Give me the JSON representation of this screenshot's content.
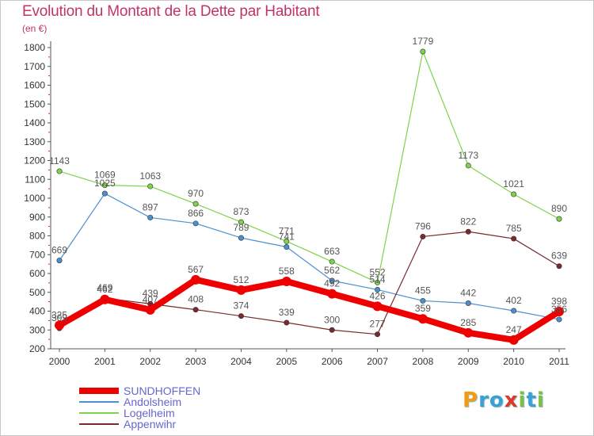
{
  "title": "Evolution du Montant de la Dette par Habitant",
  "subtitle": "(en €)",
  "logo": {
    "letters": [
      "P",
      "r",
      "o",
      "x",
      "i",
      "t",
      "i"
    ],
    "colors": [
      "#f39c12",
      "#3aa0d8",
      "#3aa0d8",
      "#e0392b",
      "#7ac143",
      "#3aa0d8",
      "#7ac143"
    ]
  },
  "chart_data": {
    "type": "line",
    "categories": [
      "2000",
      "2001",
      "2002",
      "2003",
      "2004",
      "2005",
      "2006",
      "2007",
      "2008",
      "2009",
      "2010",
      "2011"
    ],
    "ylim": [
      200,
      1800
    ],
    "yticks": [
      200,
      300,
      400,
      500,
      600,
      700,
      800,
      900,
      1000,
      1100,
      1200,
      1300,
      1400,
      1500,
      1600,
      1700,
      1800
    ],
    "grid": false,
    "legend_position": "bottom-left",
    "series": [
      {
        "name": "SUNDHOFFEN",
        "color": "#ee0000",
        "values": [
          325,
          462,
          407,
          567,
          512,
          558,
          492,
          426,
          359,
          285,
          247,
          398
        ],
        "labels": [
          "325",
          "462",
          "407",
          "567",
          "512",
          "558",
          "492",
          "426",
          "359",
          "285",
          "247",
          "398"
        ]
      },
      {
        "name": "Andolsheim",
        "color": "#4d90cf",
        "values": [
          669,
          1025,
          897,
          866,
          789,
          741,
          562,
          514,
          455,
          442,
          402,
          356
        ],
        "labels": [
          "669",
          "1025",
          "897",
          "866",
          "789",
          "741",
          "562",
          "514",
          "455",
          "442",
          "402",
          "356"
        ]
      },
      {
        "name": "Logelheim",
        "color": "#7fd34a",
        "values": [
          1143,
          1069,
          1063,
          970,
          873,
          771,
          663,
          552,
          1779,
          1173,
          1021,
          890
        ],
        "labels": [
          "1143",
          "1069",
          "1063",
          "970",
          "873",
          "771",
          "663",
          "552",
          "1779",
          "1173",
          "1021",
          "890"
        ]
      },
      {
        "name": "Appenwihr",
        "color": "#7a2a2a",
        "values": [
          309,
          469,
          439,
          408,
          374,
          339,
          300,
          277,
          796,
          822,
          785,
          639
        ],
        "labels": [
          "309",
          "469",
          "439",
          "408",
          "374",
          "339",
          "300",
          "277",
          "796",
          "822",
          "785",
          "639"
        ]
      }
    ]
  }
}
